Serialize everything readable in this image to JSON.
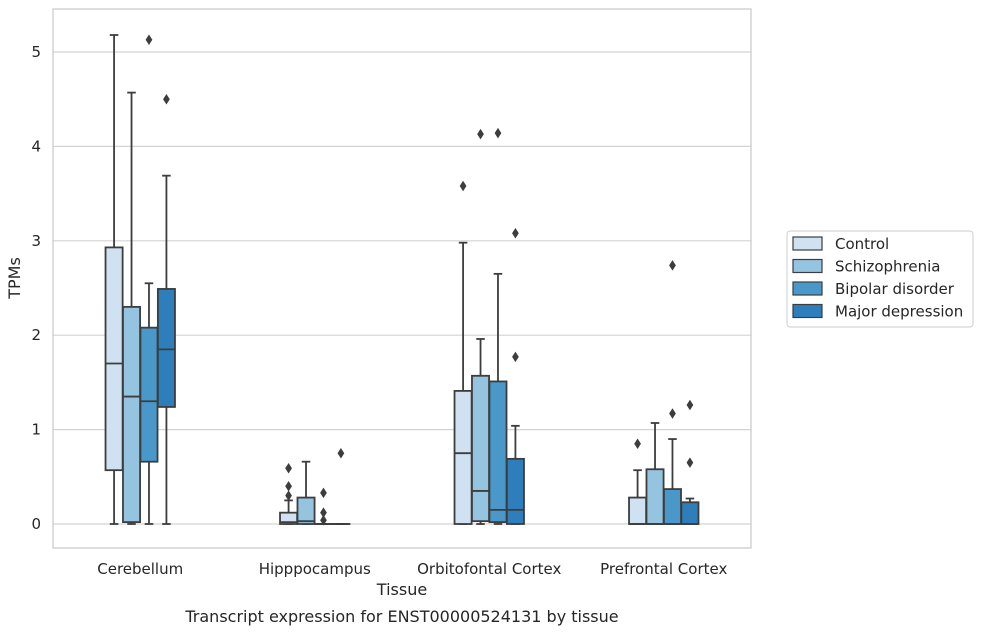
{
  "caption": "Transcript expression for ENST00000524131 by tissue",
  "chart_data": {
    "type": "box",
    "xlabel": "Tissue",
    "ylabel": "TPMs",
    "ylim": [
      -0.25,
      5.45
    ],
    "yticks": [
      0,
      1,
      2,
      3,
      4,
      5
    ],
    "grid": "horizontal",
    "legend_position": "right",
    "categories": [
      "Cerebellum",
      "Hipppocampus",
      "Orbitofontal Cortex",
      "Prefrontal Cortex"
    ],
    "series": [
      {
        "name": "Control",
        "color": "#d0e1f2",
        "boxes": [
          {
            "whisker_low": 0,
            "q1": 0.57,
            "median": 1.7,
            "q3": 2.93,
            "whisker_high": 5.18,
            "outliers": []
          },
          {
            "whisker_low": 0,
            "q1": 0,
            "median": 0.02,
            "q3": 0.12,
            "whisker_high": 0.25,
            "outliers": [
              0.3,
              0.4,
              0.59
            ]
          },
          {
            "whisker_low": 0,
            "q1": 0,
            "median": 0.75,
            "q3": 1.41,
            "whisker_high": 2.98,
            "outliers": [
              3.58
            ]
          },
          {
            "whisker_low": 0,
            "q1": 0,
            "median": 0,
            "q3": 0.28,
            "whisker_high": 0.57,
            "outliers": [
              0.85
            ]
          }
        ]
      },
      {
        "name": "Schizophrenia",
        "color": "#94c4df",
        "boxes": [
          {
            "whisker_low": 0,
            "q1": 0.02,
            "median": 1.35,
            "q3": 2.3,
            "whisker_high": 4.57,
            "outliers": []
          },
          {
            "whisker_low": 0,
            "q1": 0,
            "median": 0.03,
            "q3": 0.28,
            "whisker_high": 0.66,
            "outliers": []
          },
          {
            "whisker_low": 0,
            "q1": 0.03,
            "median": 0.35,
            "q3": 1.57,
            "whisker_high": 1.96,
            "outliers": [
              4.13
            ]
          },
          {
            "whisker_low": 0,
            "q1": 0,
            "median": 0,
            "q3": 0.58,
            "whisker_high": 1.07,
            "outliers": []
          }
        ]
      },
      {
        "name": "Bipolar disorder",
        "color": "#4a98c9",
        "boxes": [
          {
            "whisker_low": 0,
            "q1": 0.66,
            "median": 1.3,
            "q3": 2.08,
            "whisker_high": 2.55,
            "outliers": [
              5.13
            ]
          },
          {
            "whisker_low": 0,
            "q1": 0,
            "median": 0,
            "q3": 0,
            "whisker_high": 0,
            "outliers": [
              0.04,
              0.12,
              0.33
            ]
          },
          {
            "whisker_low": 0,
            "q1": 0.02,
            "median": 0.15,
            "q3": 1.51,
            "whisker_high": 2.65,
            "outliers": [
              4.14
            ]
          },
          {
            "whisker_low": 0,
            "q1": 0,
            "median": 0,
            "q3": 0.37,
            "whisker_high": 0.9,
            "outliers": [
              1.17,
              2.74
            ]
          }
        ]
      },
      {
        "name": "Major depression",
        "color": "#2e7ebc",
        "boxes": [
          {
            "whisker_low": 0,
            "q1": 1.24,
            "median": 1.85,
            "q3": 2.49,
            "whisker_high": 3.69,
            "outliers": [
              4.5
            ]
          },
          {
            "whisker_low": 0,
            "q1": 0,
            "median": 0,
            "q3": 0,
            "whisker_high": 0,
            "outliers": [
              0.75
            ]
          },
          {
            "whisker_low": 0,
            "q1": 0,
            "median": 0.15,
            "q3": 0.69,
            "whisker_high": 1.04,
            "outliers": [
              1.77,
              3.08
            ]
          },
          {
            "whisker_low": 0,
            "q1": 0,
            "median": 0,
            "q3": 0.23,
            "whisker_high": 0.27,
            "outliers": [
              0.65,
              1.26
            ]
          }
        ]
      }
    ]
  }
}
